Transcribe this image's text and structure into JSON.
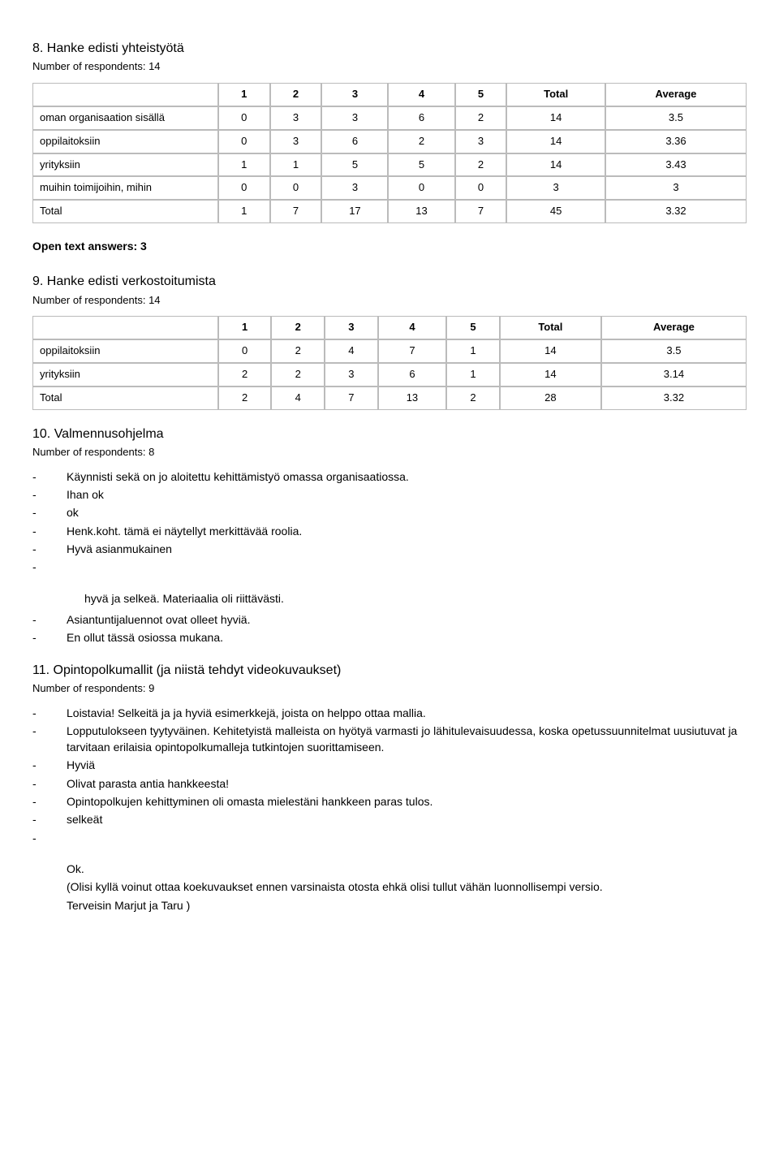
{
  "q8": {
    "title": "8. Hanke edisti yhteistyötä",
    "respondents": "Number of respondents: 14",
    "columns": [
      "",
      "1",
      "2",
      "3",
      "4",
      "5",
      "Total",
      "Average"
    ],
    "rows": [
      [
        "oman organisaation sisällä",
        "0",
        "3",
        "3",
        "6",
        "2",
        "14",
        "3.5"
      ],
      [
        "oppilaitoksiin",
        "0",
        "3",
        "6",
        "2",
        "3",
        "14",
        "3.36"
      ],
      [
        "yrityksiin",
        "1",
        "1",
        "5",
        "5",
        "2",
        "14",
        "3.43"
      ],
      [
        "muihin toimijoihin, mihin",
        "0",
        "0",
        "3",
        "0",
        "0",
        "3",
        "3"
      ],
      [
        "Total",
        "1",
        "7",
        "17",
        "13",
        "7",
        "45",
        "3.32"
      ]
    ],
    "open_text": "Open text answers: 3"
  },
  "q9": {
    "title": "9. Hanke edisti verkostoitumista",
    "respondents": "Number of respondents: 14",
    "columns": [
      "",
      "1",
      "2",
      "3",
      "4",
      "5",
      "Total",
      "Average"
    ],
    "rows": [
      [
        "oppilaitoksiin",
        "0",
        "2",
        "4",
        "7",
        "1",
        "14",
        "3.5"
      ],
      [
        "yrityksiin",
        "2",
        "2",
        "3",
        "6",
        "1",
        "14",
        "3.14"
      ],
      [
        "Total",
        "2",
        "4",
        "7",
        "13",
        "2",
        "28",
        "3.32"
      ]
    ]
  },
  "q10": {
    "title": "10. Valmennusohjelma",
    "respondents": "Number of respondents: 8",
    "items": [
      "Käynnisti sekä on jo aloitettu kehittämistyö omassa organisaatiossa.",
      "Ihan ok",
      "ok",
      "Henk.koht. tämä ei näytellyt merkittävää roolia.",
      "Hyvä asianmukainen"
    ],
    "sub_item": "hyvä ja selkeä. Materiaalia oli riittävästi.",
    "items2": [
      "Asiantuntijaluennot ovat olleet hyviä.",
      "En ollut tässä osiossa mukana."
    ]
  },
  "q11": {
    "title": "11. Opintopolkumallit (ja niistä tehdyt videokuvaukset)",
    "respondents": "Number of respondents: 9",
    "items": [
      "Loistavia! Selkeitä ja ja hyviä esimerkkejä, joista on helppo ottaa mallia.",
      "Lopputulokseen tyytyväinen. Kehitetyistä malleista on hyötyä varmasti jo lähitulevaisuudessa, koska opetussuunnitelmat uusiutuvat ja tarvitaan erilaisia opintopolkumalleja tutkintojen suorittamiseen.",
      "Hyviä",
      "Olivat parasta antia hankkeesta!",
      "Opintopolkujen kehittyminen oli omasta mielestäni hankkeen paras tulos.",
      "selkeät"
    ],
    "tail_ok": "Ok.",
    "tail_para1": "(Olisi kyllä voinut ottaa koekuvaukset ennen varsinaista otosta ehkä olisi tullut vähän luonnollisempi versio.",
    "tail_para2": "Terveisin Marjut ja Taru )"
  }
}
